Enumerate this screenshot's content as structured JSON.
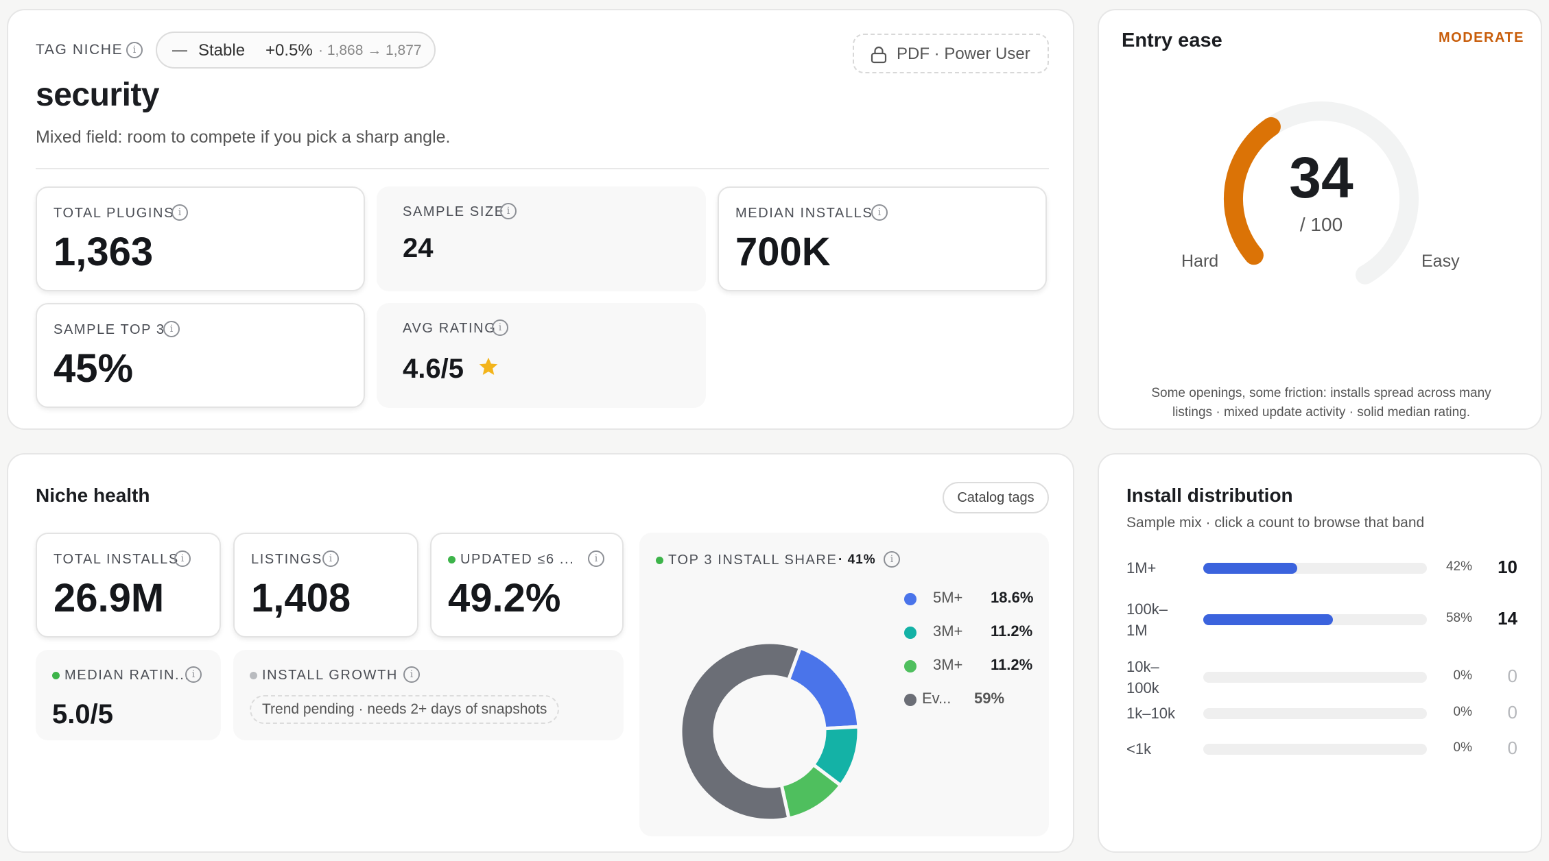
{
  "overview": {
    "tag_label": "TAG NICHE",
    "trend": {
      "dash": "—",
      "status": "Stable",
      "change": "+0.5%",
      "range": "· 1,868 → 1,877"
    },
    "pdf_button": "PDF · Power User",
    "title": "security",
    "subtitle": "Mixed field: room to compete if you pick a sharp angle.",
    "stats": {
      "total_plugins": {
        "label": "TOTAL PLUGINS",
        "value": "1,363"
      },
      "sample_size": {
        "label": "SAMPLE SIZE",
        "value": "24"
      },
      "median_installs": {
        "label": "MEDIAN INSTALLS",
        "value": "700K"
      },
      "sample_top3": {
        "label": "SAMPLE TOP 3",
        "value": "45%"
      },
      "avg_rating": {
        "label": "AVG RATING",
        "value": "4.6/5",
        "icon": "star-icon"
      }
    }
  },
  "entry": {
    "title": "Entry ease",
    "badge": "MODERATE",
    "score": "34",
    "score_value": 34,
    "max": "/ 100",
    "left_label": "Hard",
    "right_label": "Easy",
    "description_line1": "Some openings, some friction: installs spread across many",
    "description_line2": "listings · mixed update activity · solid median rating.",
    "colors": {
      "arc": "#db7306",
      "track": "#f2f3f3",
      "badge": "#c85d0a"
    }
  },
  "health": {
    "title": "Niche health",
    "catalog_button": "Catalog tags",
    "tiles": {
      "total_installs": {
        "label": "TOTAL INSTALLS",
        "value": "26.9M"
      },
      "listings": {
        "label": "LISTINGS",
        "value": "1,408"
      },
      "updated": {
        "label": "UPDATED ≤6 ...",
        "value": "49.2%"
      },
      "median_rating": {
        "label": "MEDIAN RATIN...",
        "value": "5.0/5"
      },
      "install_growth": {
        "label": "INSTALL GROWTH",
        "note": "Trend pending · needs 2+ days of snapshots"
      }
    },
    "top3": {
      "label": "TOP 3 INSTALL SHARE",
      "share": "· 41%"
    }
  },
  "chart_data": {
    "type": "pie",
    "title": "TOP 3 INSTALL SHARE · 41%",
    "categories": [
      "5M+",
      "3M+",
      "3M+",
      "Ev..."
    ],
    "values": [
      18.6,
      11.2,
      11.2,
      59
    ],
    "value_labels": [
      "18.6%",
      "11.2%",
      "11.2%",
      "59%"
    ],
    "colors": [
      "#4a74ea",
      "#14b2a6",
      "#4fbf5e",
      "#6b6e76"
    ],
    "donut": true
  },
  "distribution": {
    "title": "Install distribution",
    "subtitle": "Sample mix · click a count to browse that band",
    "bands": [
      {
        "label1": "1M+",
        "label2": "",
        "fraction": 0.42,
        "pct": "42%",
        "count": "10"
      },
      {
        "label1": "100k–",
        "label2": "1M",
        "fraction": 0.58,
        "pct": "58%",
        "count": "14"
      },
      {
        "label1": "10k–",
        "label2": "100k",
        "fraction": 0,
        "pct": "0%",
        "count": "0"
      },
      {
        "label1": "1k–10k",
        "label2": "",
        "fraction": 0,
        "pct": "0%",
        "count": "0"
      },
      {
        "label1": "<1k",
        "label2": "",
        "fraction": 0,
        "pct": "0%",
        "count": "0"
      }
    ]
  }
}
